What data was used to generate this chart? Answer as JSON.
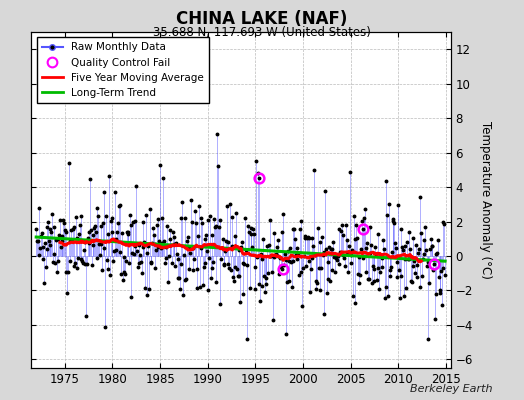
{
  "title": "CHINA LAKE (NAF)",
  "subtitle": "35.688 N, 117.693 W (United States)",
  "ylabel": "Temperature Anomaly (°C)",
  "attribution": "Berkeley Earth",
  "ylim": [
    -6.5,
    13
  ],
  "xlim": [
    1971.5,
    2015.5
  ],
  "yticks": [
    -6,
    -4,
    -2,
    0,
    2,
    4,
    6,
    8,
    10,
    12
  ],
  "xticks": [
    1975,
    1980,
    1985,
    1990,
    1995,
    2000,
    2005,
    2010,
    2015
  ],
  "background_color": "#d8d8d8",
  "plot_bg_color": "#ffffff",
  "raw_line_color": "#5555ff",
  "raw_dot_color": "#000000",
  "qc_fail_color": "#ff00ff",
  "moving_avg_color": "#ff0000",
  "trend_color": "#00bb00",
  "seed": 17
}
